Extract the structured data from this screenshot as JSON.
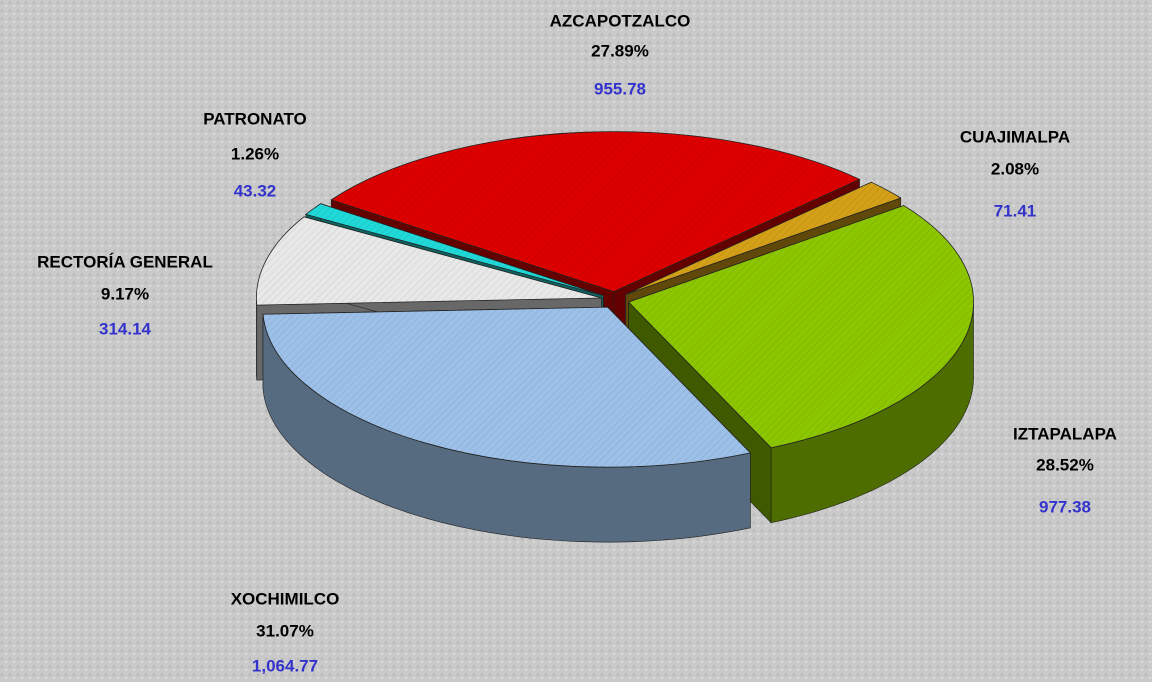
{
  "chart_data": {
    "type": "pie",
    "categories": [
      "AZCAPOTZALCO",
      "CUAJIMALPA",
      "IZTAPALAPA",
      "XOCHIMILCO",
      "RECTORÍA GENERAL",
      "PATRONATO"
    ],
    "values": [
      27.89,
      2.08,
      28.52,
      31.07,
      9.17,
      1.26
    ],
    "value_labels": [
      "27.89%",
      "2.08%",
      "28.52%",
      "31.07%",
      "9.17%",
      "1.26%"
    ],
    "amounts": [
      955.78,
      71.41,
      977.38,
      1064.77,
      314.14,
      43.32
    ],
    "amount_labels": [
      "955.78",
      "71.41",
      "977.38",
      "1,064.77",
      "314.14",
      "43.32"
    ],
    "colors": [
      "#dd0000",
      "#d4a017",
      "#8cc600",
      "#9cc0e8",
      "#e8e8e8",
      "#20d8d8"
    ]
  }
}
